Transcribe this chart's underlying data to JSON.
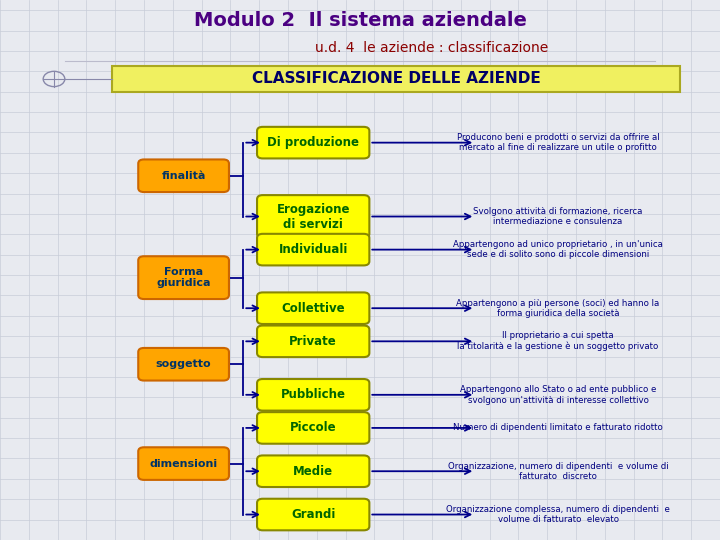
{
  "title": "Modulo 2  Il sistema aziendale",
  "subtitle": "u.d. 4  le aziende : classificazione",
  "header": "CLASSIFICAZIONE DELLE AZIENDE",
  "bg_color": "#e8eaf0",
  "grid_color": "#c8ccd8",
  "title_color": "#4b0082",
  "subtitle_color": "#8b0000",
  "header_bg": "#f0f060",
  "header_border": "#aaa820",
  "orange_box_bg": "#FFA500",
  "orange_box_border": "#cc6600",
  "yellow_box_bg": "#FFFF00",
  "yellow_box_border": "#888800",
  "arrow_color": "#00008B",
  "desc_color": "#000080",
  "left_labels": [
    {
      "text": "finalità",
      "fx": 0.255,
      "fy": 0.655
    },
    {
      "text": "Forma\ngiuridica",
      "fx": 0.255,
      "fy": 0.455
    },
    {
      "text": "soggetto",
      "fx": 0.255,
      "fy": 0.285
    },
    {
      "text": "dimensioni",
      "fx": 0.255,
      "fy": 0.09
    }
  ],
  "yellow_boxes": [
    {
      "label": "Di produzione",
      "fx": 0.435,
      "fy": 0.72,
      "parent_idx": 0
    },
    {
      "label": "Erogazione\ndi servizi",
      "fx": 0.435,
      "fy": 0.575,
      "parent_idx": 0
    },
    {
      "label": "Individuali",
      "fx": 0.435,
      "fy": 0.51,
      "parent_idx": 1
    },
    {
      "label": "Collettive",
      "fx": 0.435,
      "fy": 0.395,
      "parent_idx": 1
    },
    {
      "label": "Private",
      "fx": 0.435,
      "fy": 0.33,
      "parent_idx": 2
    },
    {
      "label": "Pubbliche",
      "fx": 0.435,
      "fy": 0.225,
      "parent_idx": 2
    },
    {
      "label": "Piccole",
      "fx": 0.435,
      "fy": 0.16,
      "parent_idx": 3
    },
    {
      "label": "Medie",
      "fx": 0.435,
      "fy": 0.075,
      "parent_idx": 3
    },
    {
      "label": "Grandi",
      "fx": 0.435,
      "fy": -0.01,
      "parent_idx": 3
    }
  ],
  "descriptions": [
    "Producono beni e prodotti o servizi da offrire al\nmercato al fine di realizzare un utile o profitto",
    "Svolgono attività di formazione, ricerca\nintermediazione e consulenza",
    "Appartengono ad unico proprietario , in un'unica\nsede e di solito sono di piccole dimensioni",
    "Appartengono a più persone (soci) ed hanno la\nforma giuridica della società",
    "Il proprietario a cui spetta\nla titolarità e la gestione è un soggetto privato",
    "Appartengono allo Stato o ad ente pubblico e\nsvolgono un'attività di interesse collettivo",
    "Numero di dipendenti limitato e fatturato ridotto",
    "Organizzazione, numero di dipendenti  e volume di\nfatturato  discreto",
    "Organizzazione complessa, numero di dipendenti  e\nvolume di fatturato  elevato"
  ]
}
